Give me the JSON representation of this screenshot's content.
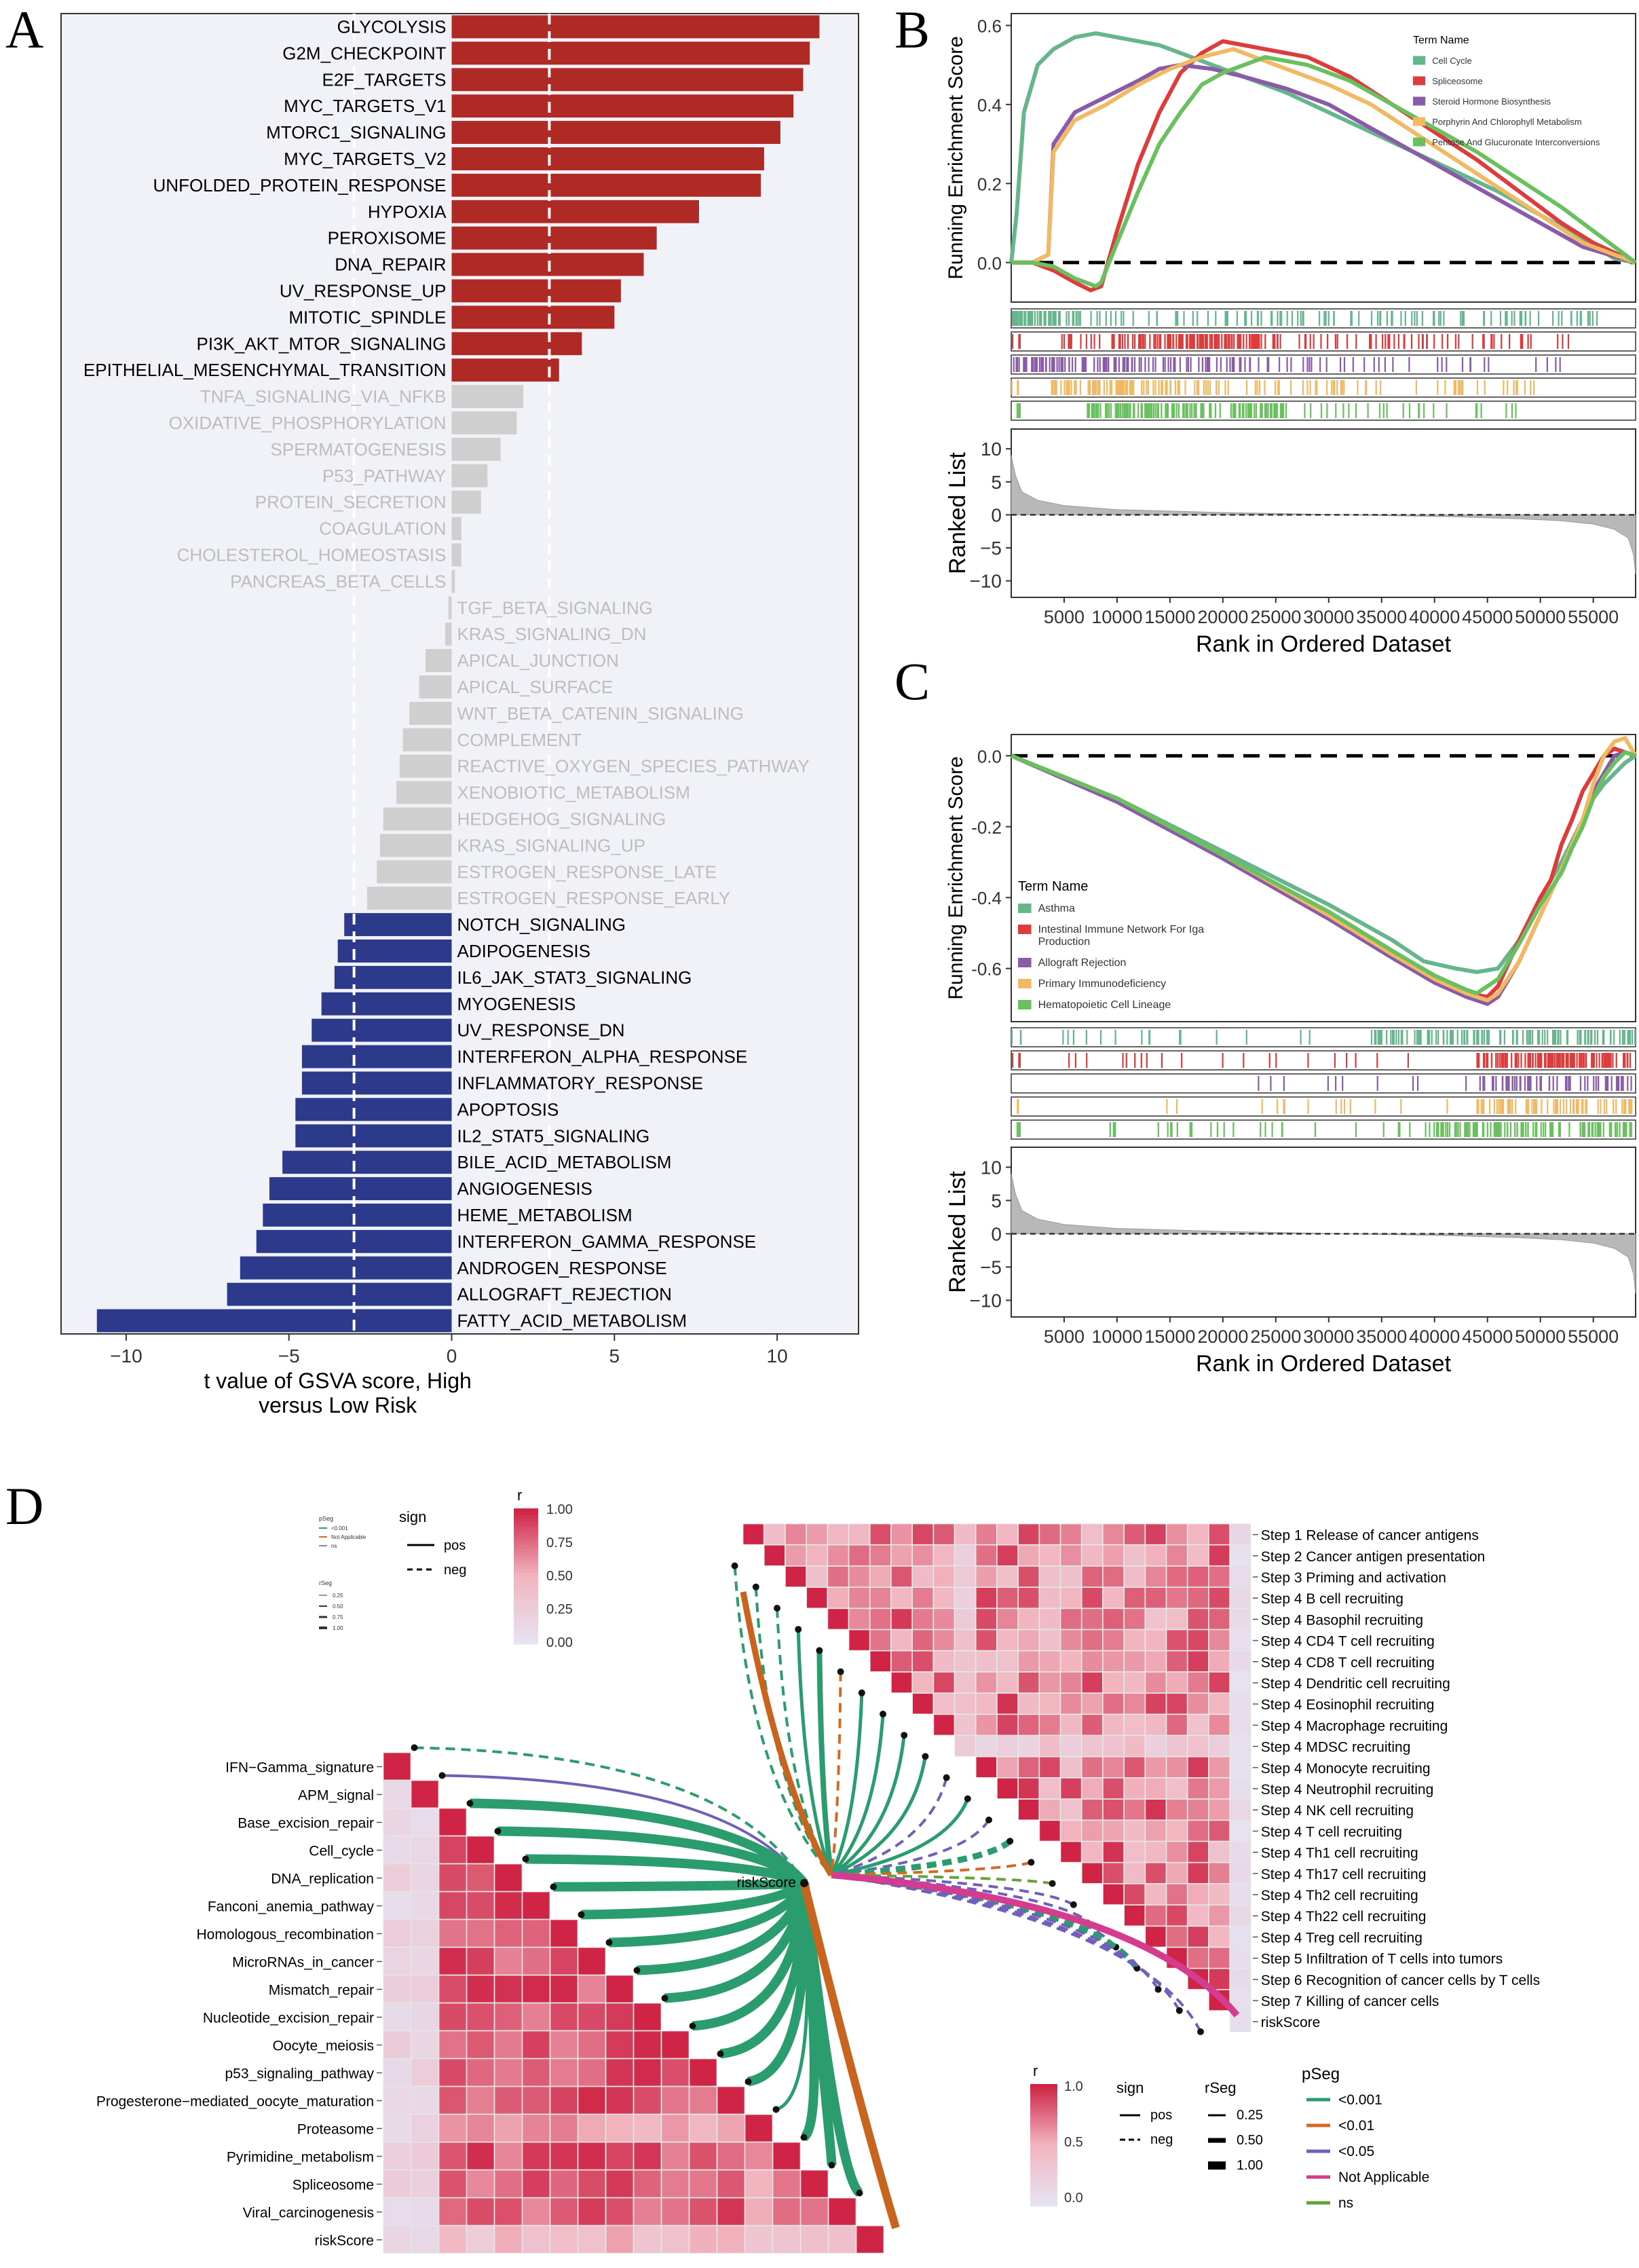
{
  "panels": {
    "A": {
      "label": "A"
    },
    "B": {
      "label": "B"
    },
    "C": {
      "label": "C"
    },
    "D": {
      "label": "D"
    }
  },
  "chart_data": [
    {
      "id": "A",
      "type": "bar",
      "orientation": "horizontal",
      "xlabel": "t value of GSVA score, High\nversus Low Risk",
      "xlim": [
        -12,
        12.5
      ],
      "xticks": [
        -10,
        -5,
        0,
        5,
        10
      ],
      "threshold": 3.0,
      "colors": {
        "up": "#b02a25",
        "down": "#2d3a8c",
        "ns": "#cfcfcf",
        "background": "#f1f2f8"
      },
      "categories": [
        "GLYCOLYSIS",
        "G2M_CHECKPOINT",
        "E2F_TARGETS",
        "MYC_TARGETS_V1",
        "MTORC1_SIGNALING",
        "MYC_TARGETS_V2",
        "UNFOLDED_PROTEIN_RESPONSE",
        "HYPOXIA",
        "PEROXISOME",
        "DNA_REPAIR",
        "UV_RESPONSE_UP",
        "MITOTIC_SPINDLE",
        "PI3K_AKT_MTOR_SIGNALING",
        "EPITHELIAL_MESENCHYMAL_TRANSITION",
        "TNFA_SIGNALING_VIA_NFKB",
        "OXIDATIVE_PHOSPHORYLATION",
        "SPERMATOGENESIS",
        "P53_PATHWAY",
        "PROTEIN_SECRETION",
        "COAGULATION",
        "CHOLESTEROL_HOMEOSTASIS",
        "PANCREAS_BETA_CELLS",
        "TGF_BETA_SIGNALING",
        "KRAS_SIGNALING_DN",
        "APICAL_JUNCTION",
        "APICAL_SURFACE",
        "WNT_BETA_CATENIN_SIGNALING",
        "COMPLEMENT",
        "REACTIVE_OXYGEN_SPECIES_PATHWAY",
        "XENOBIOTIC_METABOLISM",
        "HEDGEHOG_SIGNALING",
        "KRAS_SIGNALING_UP",
        "ESTROGEN_RESPONSE_LATE",
        "ESTROGEN_RESPONSE_EARLY",
        "NOTCH_SIGNALING",
        "ADIPOGENESIS",
        "IL6_JAK_STAT3_SIGNALING",
        "MYOGENESIS",
        "UV_RESPONSE_DN",
        "INTERFERON_ALPHA_RESPONSE",
        "INFLAMMATORY_RESPONSE",
        "APOPTOSIS",
        "IL2_STAT5_SIGNALING",
        "BILE_ACID_METABOLISM",
        "ANGIOGENESIS",
        "HEME_METABOLISM",
        "INTERFERON_GAMMA_RESPONSE",
        "ANDROGEN_RESPONSE",
        "ALLOGRAFT_REJECTION",
        "FATTY_ACID_METABOLISM"
      ],
      "values": [
        11.3,
        11.0,
        10.8,
        10.5,
        10.1,
        9.6,
        9.5,
        7.6,
        6.3,
        5.9,
        5.2,
        5.0,
        4.0,
        3.3,
        2.2,
        2.0,
        1.5,
        1.1,
        0.9,
        0.3,
        0.3,
        0.1,
        -0.1,
        -0.2,
        -0.8,
        -1.0,
        -1.3,
        -1.5,
        -1.6,
        -1.7,
        -2.1,
        -2.2,
        -2.3,
        -2.6,
        -3.3,
        -3.5,
        -3.6,
        -4.0,
        -4.3,
        -4.6,
        -4.6,
        -4.8,
        -4.8,
        -5.2,
        -5.6,
        -5.8,
        -6.0,
        -6.5,
        -6.9,
        -10.9
      ]
    },
    {
      "id": "B",
      "type": "line",
      "subtype": "gsea",
      "ylabel": "Running Enrichment Score",
      "xlabel": "Rank in Ordered Dataset",
      "ylim": [
        -0.1,
        0.63
      ],
      "yticks": [
        0.0,
        0.2,
        0.4,
        0.6
      ],
      "xlim": [
        0,
        59000
      ],
      "xticks": [
        5000,
        10000,
        15000,
        20000,
        25000,
        30000,
        35000,
        40000,
        45000,
        50000,
        55000
      ],
      "legend_title": "Term Name",
      "legend_position": "top-right",
      "series": [
        {
          "name": "Cell Cycle",
          "color": "#66b58c",
          "x": [
            0,
            500,
            1200,
            2500,
            4000,
            6000,
            8000,
            10000,
            14000,
            18000,
            22000,
            26000,
            30000,
            34000,
            38000,
            42000,
            46000,
            50000,
            54000,
            57000,
            59000
          ],
          "values": [
            0,
            0.12,
            0.38,
            0.5,
            0.54,
            0.57,
            0.58,
            0.57,
            0.55,
            0.51,
            0.47,
            0.43,
            0.38,
            0.33,
            0.28,
            0.23,
            0.18,
            0.12,
            0.06,
            0.01,
            0.0
          ]
        },
        {
          "name": "Spliceosome",
          "color": "#dd3c3c",
          "x": [
            0,
            2000,
            4000,
            6000,
            7500,
            8500,
            10000,
            12000,
            14000,
            16000,
            18000,
            20000,
            24000,
            28000,
            32000,
            36000,
            40000,
            44000,
            48000,
            52000,
            55000,
            59000
          ],
          "values": [
            0,
            0.0,
            -0.02,
            -0.05,
            -0.07,
            -0.06,
            0.08,
            0.25,
            0.38,
            0.48,
            0.53,
            0.56,
            0.54,
            0.52,
            0.47,
            0.4,
            0.33,
            0.26,
            0.18,
            0.1,
            0.05,
            0.0
          ]
        },
        {
          "name": "Steroid Hormone Biosynthesis",
          "color": "#8a5ca8",
          "x": [
            0,
            2000,
            3500,
            4000,
            6000,
            9000,
            12000,
            14000,
            16000,
            19000,
            22000,
            26000,
            30000,
            34000,
            38000,
            42000,
            46000,
            50000,
            54000,
            59000
          ],
          "values": [
            0,
            0.0,
            0.02,
            0.3,
            0.38,
            0.42,
            0.46,
            0.49,
            0.5,
            0.49,
            0.47,
            0.44,
            0.4,
            0.34,
            0.28,
            0.22,
            0.16,
            0.1,
            0.04,
            0.0
          ]
        },
        {
          "name": "Porphyrin And Chlorophyll Metabolism",
          "color": "#f1b963",
          "x": [
            0,
            2000,
            3500,
            4000,
            6000,
            9000,
            12000,
            15000,
            18000,
            21000,
            23000,
            26000,
            30000,
            34000,
            38000,
            42000,
            46000,
            50000,
            54000,
            59000
          ],
          "values": [
            0,
            0.0,
            0.02,
            0.28,
            0.36,
            0.4,
            0.45,
            0.49,
            0.52,
            0.54,
            0.52,
            0.49,
            0.45,
            0.4,
            0.33,
            0.26,
            0.19,
            0.12,
            0.05,
            0.0
          ]
        },
        {
          "name": "Pentose And Glucuronate Interconversions",
          "color": "#6abf5f",
          "x": [
            0,
            2000,
            4000,
            6000,
            8000,
            8500,
            10000,
            12000,
            14000,
            16000,
            18000,
            20000,
            22000,
            24000,
            28000,
            32000,
            36000,
            40000,
            44000,
            48000,
            52000,
            55000,
            59000
          ],
          "values": [
            0,
            0.0,
            -0.01,
            -0.04,
            -0.06,
            -0.05,
            0.05,
            0.18,
            0.3,
            0.38,
            0.45,
            0.48,
            0.5,
            0.52,
            0.5,
            0.46,
            0.4,
            0.34,
            0.28,
            0.21,
            0.14,
            0.08,
            0.0
          ]
        }
      ],
      "ranked_list": {
        "ylabel": "Ranked List",
        "yticks": [
          10,
          5,
          0,
          -5,
          -10
        ],
        "ylim": [
          -12.5,
          13
        ]
      }
    },
    {
      "id": "C",
      "type": "line",
      "subtype": "gsea",
      "ylabel": "Running Enrichment Score",
      "xlabel": "Rank in Ordered Dataset",
      "ylim": [
        -0.75,
        0.06
      ],
      "yticks": [
        0.0,
        -0.2,
        -0.4,
        -0.6
      ],
      "xlim": [
        0,
        59000
      ],
      "xticks": [
        5000,
        10000,
        15000,
        20000,
        25000,
        30000,
        35000,
        40000,
        45000,
        50000,
        55000
      ],
      "legend_title": "Term Name",
      "legend_position": "bottom-left",
      "series": [
        {
          "name": "Asthma",
          "color": "#66b58c",
          "x": [
            0,
            10000,
            20000,
            30000,
            36000,
            39000,
            42000,
            44000,
            46000,
            48000,
            50000,
            52000,
            53000,
            54000,
            55000,
            56000,
            57000,
            58000,
            59000
          ],
          "values": [
            0,
            -0.12,
            -0.27,
            -0.42,
            -0.52,
            -0.58,
            -0.6,
            -0.61,
            -0.6,
            -0.52,
            -0.4,
            -0.3,
            -0.24,
            -0.18,
            -0.12,
            -0.08,
            -0.05,
            -0.02,
            0.0
          ]
        },
        {
          "name": "Intestinal Immune Network For Iga\nProduction",
          "color": "#dd3c3c",
          "x": [
            0,
            10000,
            20000,
            30000,
            36000,
            40000,
            43000,
            45000,
            46000,
            48000,
            50000,
            51000,
            52000,
            53000,
            54000,
            55000,
            56000,
            57000,
            58000,
            59000
          ],
          "values": [
            0,
            -0.12,
            -0.28,
            -0.45,
            -0.56,
            -0.63,
            -0.67,
            -0.68,
            -0.65,
            -0.52,
            -0.4,
            -0.35,
            -0.25,
            -0.18,
            -0.1,
            -0.05,
            0.0,
            0.02,
            0.01,
            0.0
          ]
        },
        {
          "name": "Allograft Rejection",
          "color": "#8a5ca8",
          "x": [
            0,
            10000,
            20000,
            30000,
            36000,
            40000,
            43000,
            45000,
            46000,
            48000,
            50000,
            52000,
            53000,
            54000,
            55000,
            56000,
            57000,
            58000,
            59000
          ],
          "values": [
            0,
            -0.13,
            -0.29,
            -0.46,
            -0.57,
            -0.64,
            -0.68,
            -0.7,
            -0.68,
            -0.58,
            -0.45,
            -0.32,
            -0.25,
            -0.18,
            -0.1,
            -0.05,
            0.0,
            0.01,
            0.0
          ]
        },
        {
          "name": "Primary Immunodeficiency",
          "color": "#f1b963",
          "x": [
            0,
            10000,
            20000,
            30000,
            36000,
            40000,
            43000,
            45000,
            46000,
            48000,
            50000,
            52000,
            53000,
            54000,
            55000,
            56000,
            57000,
            58000,
            59000
          ],
          "values": [
            0,
            -0.12,
            -0.28,
            -0.45,
            -0.56,
            -0.63,
            -0.67,
            -0.69,
            -0.67,
            -0.58,
            -0.45,
            -0.32,
            -0.25,
            -0.18,
            -0.08,
            0.0,
            0.04,
            0.05,
            0.0
          ]
        },
        {
          "name": "Hematopoietic Cell Lineage",
          "color": "#6abf5f",
          "x": [
            0,
            10000,
            20000,
            30000,
            36000,
            40000,
            43000,
            44000,
            46000,
            48000,
            50000,
            52000,
            53000,
            54000,
            55000,
            56000,
            57000,
            58000,
            59000
          ],
          "values": [
            0,
            -0.12,
            -0.28,
            -0.44,
            -0.55,
            -0.62,
            -0.66,
            -0.67,
            -0.63,
            -0.53,
            -0.42,
            -0.33,
            -0.26,
            -0.2,
            -0.12,
            -0.06,
            -0.02,
            0.01,
            0.0
          ]
        }
      ],
      "ranked_list": {
        "ylabel": "Ranked List",
        "yticks": [
          10,
          5,
          0,
          -5,
          -10
        ],
        "ylim": [
          -12.5,
          13
        ]
      }
    },
    {
      "id": "D",
      "type": "heatmap",
      "subtype": "correlation-network",
      "top_matrix": {
        "labels": [
          "Step 1 Release of cancer antigens",
          "Step 2 Cancer antigen presentation",
          "Step 3 Priming and activation",
          "Step 4 B cell recruiting",
          "Step 4 Basophil recruiting",
          "Step 4 CD4 T cell recruiting",
          "Step 4 CD8 T cell recruiting",
          "Step 4 Dendritic cell recruiting",
          "Step 4 Eosinophil recruiting",
          "Step 4 Macrophage recruiting",
          "Step 4 MDSC recruiting",
          "Step 4 Monocyte recruiting",
          "Step 4 Neutrophil recruiting",
          "Step 4 NK cell recruiting",
          "Step 4 T cell recruiting",
          "Step 4 Th1 cell recruiting",
          "Step 4 Th17 cell recruiting",
          "Step 4 Th2 cell recruiting",
          "Step 4 Th22 cell recruiting",
          "Step 4 Treg cell recruiting",
          "Step 5 Infiltration of T cells into tumors",
          "Step 6 Recognition of cancer cells by T cells",
          "Step 7 Killing of cancer cells",
          "riskScore"
        ],
        "legend": {
          "title": "r",
          "ticks": [
            "1.00",
            "0.75",
            "0.50",
            "0.25",
            "0.00"
          ]
        },
        "small_legend": {
          "pSeg_title": "pSeg",
          "pSeg_items": [
            "<0.001",
            "Not Applicable",
            "ns"
          ],
          "rSeg_title": "rSeg",
          "rSeg_items": [
            "0.25",
            "0.50",
            "0.75",
            "1.00"
          ],
          "sign_title": "sign",
          "sign_items": [
            "pos",
            "neg"
          ]
        }
      },
      "bottom_matrix": {
        "labels": [
          "IFN−Gamma_signature",
          "APM_signal",
          "Base_excision_repair",
          "Cell_cycle",
          "DNA_replication",
          "Fanconi_anemia_pathway",
          "Homologous_recombination",
          "MicroRNAs_in_cancer",
          "Mismatch_repair",
          "Nucleotide_excision_repair",
          "Oocyte_meiosis",
          "p53_signaling_pathway",
          "Progesterone−mediated_oocyte_maturation",
          "Proteasome",
          "Pyrimidine_metabolism",
          "Spliceosome",
          "Viral_carcinogenesis",
          "riskScore"
        ],
        "legend": {
          "title": "r",
          "ticks": [
            "1.0",
            "0.5",
            "0.0"
          ]
        }
      },
      "center_label": "riskScore",
      "legend_sign": {
        "title": "sign",
        "items": [
          "pos",
          "neg"
        ]
      },
      "legend_rSeg": {
        "title": "rSeg",
        "items": [
          "0.25",
          "0.50",
          "1.00"
        ]
      },
      "legend_pSeg": {
        "title": "pSeg",
        "items": [
          {
            "label": "<0.001",
            "color": "#2a9c6e"
          },
          {
            "label": "<0.01",
            "color": "#d36a20"
          },
          {
            "label": "<0.05",
            "color": "#7060b8"
          },
          {
            "label": "Not Applicable",
            "color": "#d43d8f"
          },
          {
            "label": "ns",
            "color": "#62a33a"
          }
        ]
      },
      "colors": {
        "high": "#cf2446",
        "mid": "#f2b5c0",
        "low": "#e6e3f2"
      }
    }
  ]
}
